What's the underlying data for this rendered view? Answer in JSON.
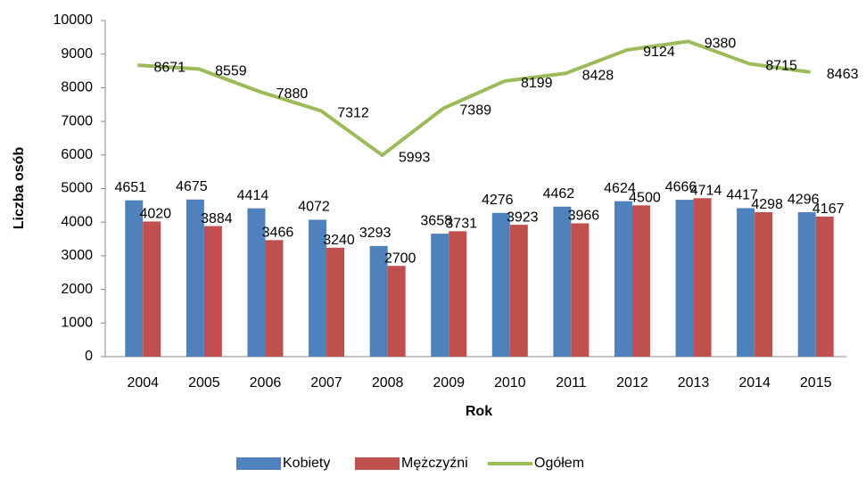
{
  "chart_data": {
    "type": "bar",
    "categories": [
      "2004",
      "2005",
      "2006",
      "2007",
      "2008",
      "2009",
      "2010",
      "2011",
      "2012",
      "2013",
      "2014",
      "2015"
    ],
    "series": [
      {
        "name": "Kobiety",
        "color": "#4f81bd",
        "values": [
          4651,
          4675,
          4414,
          4072,
          3293,
          3658,
          4276,
          4462,
          4624,
          4666,
          4417,
          4296
        ]
      },
      {
        "name": "Mężczyźni",
        "color": "#c0504d",
        "values": [
          4020,
          3884,
          3466,
          3240,
          2700,
          3731,
          3923,
          3966,
          4500,
          4714,
          4298,
          4167
        ]
      },
      {
        "name": "Ogółem",
        "color": "#9bbb59",
        "type": "line",
        "values": [
          8671,
          8559,
          7880,
          7312,
          5993,
          7389,
          8199,
          8428,
          9124,
          9380,
          8715,
          8463
        ]
      }
    ],
    "ylabel": "Liczba osób",
    "xlabel": "Rok",
    "ylim": [
      0,
      10000
    ],
    "yticks": [
      0,
      1000,
      2000,
      3000,
      4000,
      5000,
      6000,
      7000,
      8000,
      9000,
      10000
    ],
    "legend": "bottom"
  }
}
